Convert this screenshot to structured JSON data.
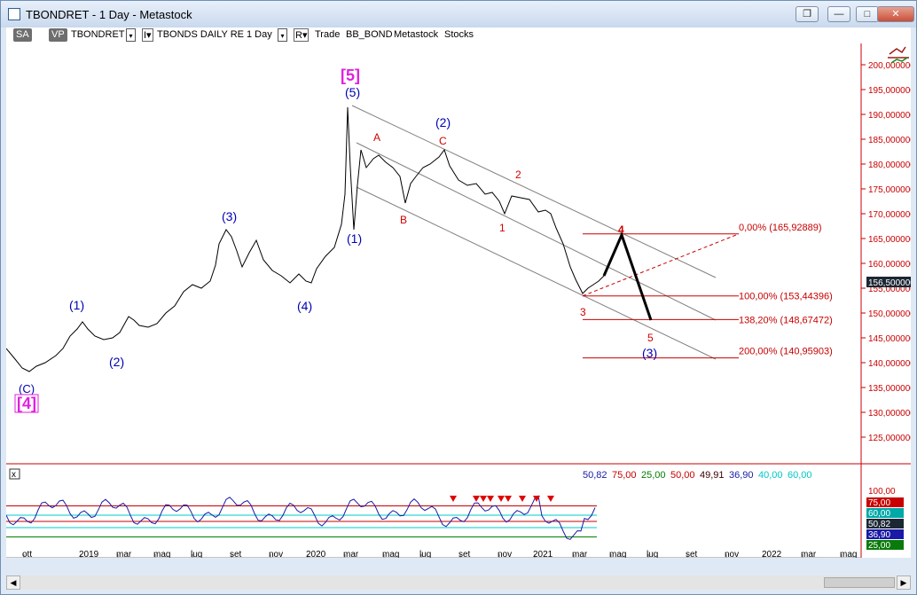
{
  "window": {
    "title": "TBONDRET - 1 Day - Metastock",
    "buttons": {
      "restore_down_label": "❐",
      "minimize_label": "—",
      "maximize_label": "□",
      "close_label": "✕"
    }
  },
  "toolbar": {
    "sa_label": "SA",
    "vp_label": "VP",
    "symbol": "TBONDRET",
    "dropdown_glyph": "▾",
    "i_glyph": "I▾",
    "r_glyph": "R▾",
    "security_name": "TBONDS DAILY RE",
    "period": "1 Day",
    "trade_label": "Trade",
    "source": "BB_BOND",
    "layout": "Metastock",
    "category": "Stocks"
  },
  "price_axis": {
    "ticks": [
      "200,000000",
      "195,000000",
      "190,000000",
      "185,000000",
      "180,000000",
      "175,000000",
      "170,000000",
      "165,000000",
      "160,000000",
      "155,000000",
      "150,000000",
      "145,000000",
      "140,000000",
      "135,000000",
      "130,000000",
      "125,000000"
    ],
    "last_value": "156,500000"
  },
  "wave_labels": {
    "primary_top": "[5]",
    "primary_bottom": "[4]",
    "c_low": "(C)",
    "w1": "(1)",
    "w2": "(2)",
    "w3": "(3)",
    "w4": "(4)",
    "w5": "(5)",
    "n1": "(1)",
    "n2": "(2)",
    "n3": "(3)",
    "a": "A",
    "b": "B",
    "c": "C",
    "i1": "1",
    "i2": "2",
    "i3": "3",
    "i4": "4",
    "i5": "5"
  },
  "fib_levels": {
    "f0": "0,00% (165,92889)",
    "f100": "100,00% (153,44396)",
    "f138": "138,20% (148,67472)",
    "f200": "200,00% (140,95903)"
  },
  "indicator": {
    "values": [
      {
        "text": "50,82",
        "color": "#1a1aa6"
      },
      {
        "text": "75,00",
        "color": "#c80000"
      },
      {
        "text": "25,00",
        "color": "#008000"
      },
      {
        "text": "50,00",
        "color": "#c80000"
      },
      {
        "text": "49,91",
        "color": "#3a0000"
      },
      {
        "text": "36,90",
        "color": "#1a1aa6"
      },
      {
        "text": "40,00",
        "color": "#00c8c8"
      },
      {
        "text": "60,00",
        "color": "#00c8c8"
      }
    ],
    "axis_top": "100,00",
    "badges": [
      "75,00",
      "60,00",
      "50,82",
      "36,90",
      "25,00"
    ],
    "close_glyph": "x"
  },
  "date_axis": [
    "ott",
    "2019",
    "mar",
    "mag",
    "lug",
    "set",
    "nov",
    "2020",
    "mar",
    "mag",
    "lug",
    "set",
    "nov",
    "2021",
    "mar",
    "mag",
    "lug",
    "set",
    "nov",
    "2022",
    "mar",
    "mag"
  ],
  "colors": {
    "price_line": "#000000",
    "wave_blue": "#0000b4",
    "wave_red": "#d00000",
    "wave_magenta": "#e020e0",
    "fib": "#c80000",
    "channel": "#808080"
  },
  "scrollbar": {
    "left_glyph": "◀",
    "right_glyph": "▶"
  }
}
